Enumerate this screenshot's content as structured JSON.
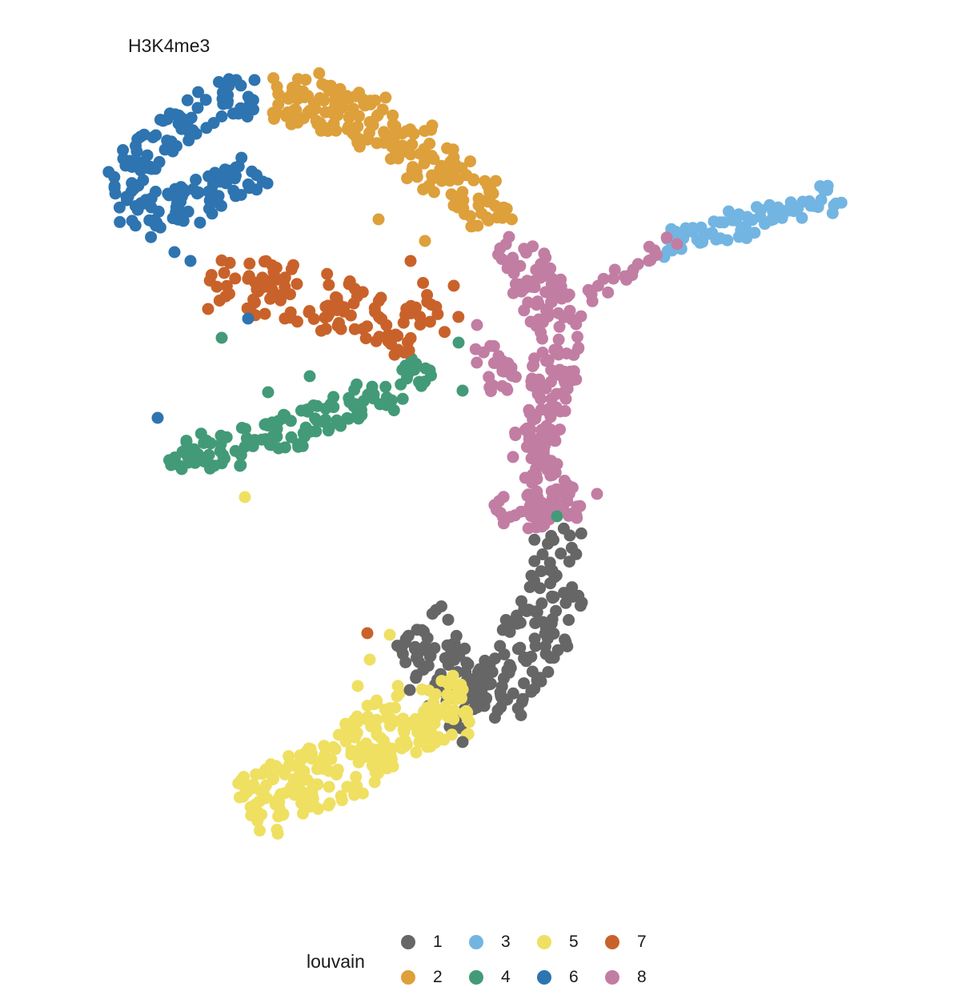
{
  "chart_data": {
    "type": "scatter",
    "title": "H3K4me3",
    "xlabel": "",
    "ylabel": "",
    "grid": false,
    "axes_visible": false,
    "legend": {
      "title": "louvain",
      "placement": "bottom",
      "entries": [
        {
          "label": "1",
          "color": "#666666"
        },
        {
          "label": "2",
          "color": "#DDA03B"
        },
        {
          "label": "3",
          "color": "#72B5E2"
        },
        {
          "label": "4",
          "color": "#439A78"
        },
        {
          "label": "5",
          "color": "#EFE062"
        },
        {
          "label": "6",
          "color": "#2E74B0"
        },
        {
          "label": "7",
          "color": "#C9622A"
        },
        {
          "label": "8",
          "color": "#C27DA3"
        }
      ]
    },
    "series": [
      {
        "name": "1",
        "color": "#666666",
        "shape": "band",
        "path": [
          [
            690,
            665
          ],
          [
            700,
            715
          ],
          [
            680,
            780
          ],
          [
            640,
            835
          ],
          [
            600,
            885
          ],
          [
            575,
            875
          ],
          [
            555,
            840
          ],
          [
            540,
            800
          ],
          [
            520,
            780
          ]
        ],
        "width": 78,
        "count": 210
      },
      {
        "name": "2",
        "color": "#DDA03B",
        "shape": "band",
        "path": [
          [
            340,
            120
          ],
          [
            380,
            125
          ],
          [
            430,
            140
          ],
          [
            480,
            160
          ],
          [
            530,
            190
          ],
          [
            570,
            220
          ],
          [
            610,
            255
          ],
          [
            615,
            280
          ]
        ],
        "width": 62,
        "count": 200
      },
      {
        "name": "3",
        "color": "#72B5E2",
        "shape": "band",
        "path": [
          [
            825,
            310
          ],
          [
            880,
            292
          ],
          [
            940,
            278
          ],
          [
            1000,
            262
          ],
          [
            1058,
            245
          ]
        ],
        "width": 28,
        "count": 75
      },
      {
        "name": "4",
        "color": "#439A78",
        "shape": "band",
        "path": [
          [
            205,
            575
          ],
          [
            260,
            565
          ],
          [
            320,
            550
          ],
          [
            380,
            530
          ],
          [
            440,
            505
          ],
          [
            500,
            480
          ],
          [
            550,
            460
          ]
        ],
        "width": 48,
        "count": 135
      },
      {
        "name": "5",
        "color": "#EFE062",
        "shape": "band",
        "path": [
          [
            300,
            1005
          ],
          [
            360,
            990
          ],
          [
            420,
            960
          ],
          [
            480,
            920
          ],
          [
            530,
            890
          ],
          [
            585,
            880
          ]
        ],
        "width": 82,
        "count": 255
      },
      {
        "name": "6",
        "color": "#2E74B0",
        "shape": "band",
        "path": [
          [
            310,
            115
          ],
          [
            260,
            135
          ],
          [
            200,
            170
          ],
          [
            160,
            215
          ],
          [
            145,
            250
          ],
          [
            175,
            270
          ],
          [
            230,
            255
          ],
          [
            300,
            230
          ],
          [
            320,
            210
          ]
        ],
        "width": 52,
        "count": 170
      },
      {
        "name": "7",
        "color": "#C9622A",
        "shape": "band",
        "path": [
          [
            260,
            340
          ],
          [
            310,
            355
          ],
          [
            370,
            370
          ],
          [
            420,
            385
          ],
          [
            470,
            400
          ],
          [
            520,
            410
          ],
          [
            560,
            370
          ]
        ],
        "width": 70,
        "count": 120
      },
      {
        "name": "8",
        "color": "#C27DA3",
        "shape": "band",
        "path": [
          [
            640,
            300
          ],
          [
            665,
            345
          ],
          [
            695,
            390
          ],
          [
            700,
            450
          ],
          [
            680,
            500
          ],
          [
            665,
            555
          ],
          [
            685,
            610
          ],
          [
            700,
            650
          ]
        ],
        "width": 58,
        "count": 215
      },
      {
        "name": "8",
        "color": "#C27DA3",
        "shape": "band",
        "path": [
          [
            600,
            430
          ],
          [
            620,
            465
          ],
          [
            640,
            480
          ]
        ],
        "width": 40,
        "count": 25
      },
      {
        "name": "8",
        "color": "#C27DA3",
        "shape": "band",
        "path": [
          [
            730,
            370
          ],
          [
            770,
            345
          ],
          [
            810,
            325
          ],
          [
            840,
            305
          ]
        ],
        "width": 24,
        "count": 22
      },
      {
        "name": "8",
        "color": "#C27DA3",
        "shape": "band",
        "path": [
          [
            620,
            630
          ],
          [
            650,
            640
          ],
          [
            690,
            640
          ],
          [
            735,
            625
          ]
        ],
        "width": 36,
        "count": 30
      }
    ],
    "stray_points": [
      {
        "x": 197,
        "y": 522,
        "series": "6"
      },
      {
        "x": 218,
        "y": 315,
        "series": "6"
      },
      {
        "x": 238,
        "y": 326,
        "series": "6"
      },
      {
        "x": 318,
        "y": 100,
        "series": "6"
      },
      {
        "x": 335,
        "y": 490,
        "series": "4"
      },
      {
        "x": 277,
        "y": 422,
        "series": "4"
      },
      {
        "x": 387,
        "y": 470,
        "series": "4"
      },
      {
        "x": 573,
        "y": 428,
        "series": "4"
      },
      {
        "x": 578,
        "y": 488,
        "series": "4"
      },
      {
        "x": 306,
        "y": 621,
        "series": "5"
      },
      {
        "x": 462,
        "y": 824,
        "series": "5"
      },
      {
        "x": 487,
        "y": 793,
        "series": "5"
      },
      {
        "x": 447,
        "y": 857,
        "series": "5"
      },
      {
        "x": 459,
        "y": 791,
        "series": "7"
      },
      {
        "x": 473,
        "y": 274,
        "series": "2"
      },
      {
        "x": 531,
        "y": 301,
        "series": "2"
      },
      {
        "x": 260,
        "y": 386,
        "series": "7"
      },
      {
        "x": 567,
        "y": 357,
        "series": "7"
      },
      {
        "x": 513,
        "y": 326,
        "series": "7"
      },
      {
        "x": 512,
        "y": 862,
        "series": "1"
      },
      {
        "x": 578,
        "y": 927,
        "series": "1"
      },
      {
        "x": 712,
        "y": 669,
        "series": "1"
      },
      {
        "x": 696,
        "y": 645,
        "series": "4"
      },
      {
        "x": 310,
        "y": 398,
        "series": "6"
      },
      {
        "x": 596,
        "y": 406,
        "series": "8"
      },
      {
        "x": 636,
        "y": 296,
        "series": "8"
      },
      {
        "x": 746,
        "y": 617,
        "series": "8"
      },
      {
        "x": 846,
        "y": 305,
        "series": "8"
      }
    ]
  }
}
